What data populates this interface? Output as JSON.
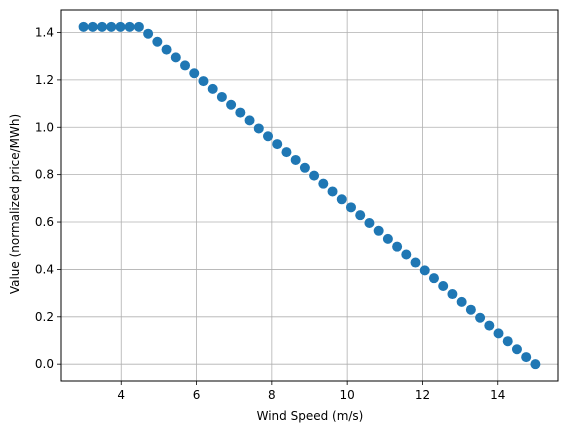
{
  "chart_data": {
    "type": "scatter",
    "xlabel": "Wind Speed (m/s)",
    "ylabel": "Value (normalized price/MWh)",
    "xlim": [
      2.4,
      15.6
    ],
    "ylim": [
      -0.071,
      1.495
    ],
    "xticks": [
      4,
      6,
      8,
      10,
      12,
      14
    ],
    "yticks": [
      0.0,
      0.2,
      0.4,
      0.6,
      0.8,
      1.0,
      1.2,
      1.4
    ],
    "ytick_labels": [
      "0.0",
      "0.2",
      "0.4",
      "0.6",
      "0.8",
      "1.0",
      "1.2",
      "1.4"
    ],
    "grid": true,
    "marker_color": "#1f77b4",
    "x": [
      3.0,
      3.245,
      3.49,
      3.735,
      3.98,
      4.224,
      4.469,
      4.714,
      4.959,
      5.204,
      5.449,
      5.694,
      5.939,
      6.184,
      6.429,
      6.673,
      6.918,
      7.163,
      7.408,
      7.653,
      7.898,
      8.143,
      8.388,
      8.633,
      8.878,
      9.122,
      9.367,
      9.612,
      9.857,
      10.102,
      10.347,
      10.592,
      10.837,
      11.082,
      11.327,
      11.571,
      11.816,
      12.061,
      12.306,
      12.551,
      12.796,
      13.041,
      13.286,
      13.531,
      13.776,
      14.02,
      14.265,
      14.51,
      14.755,
      15.0
    ],
    "y": [
      1.424,
      1.424,
      1.424,
      1.424,
      1.424,
      1.424,
      1.424,
      1.395,
      1.361,
      1.328,
      1.295,
      1.261,
      1.228,
      1.195,
      1.162,
      1.128,
      1.095,
      1.062,
      1.029,
      0.995,
      0.962,
      0.929,
      0.895,
      0.862,
      0.829,
      0.796,
      0.762,
      0.729,
      0.696,
      0.662,
      0.629,
      0.596,
      0.563,
      0.529,
      0.496,
      0.463,
      0.429,
      0.396,
      0.363,
      0.33,
      0.296,
      0.263,
      0.23,
      0.196,
      0.163,
      0.13,
      0.097,
      0.063,
      0.03,
      0.0
    ]
  }
}
